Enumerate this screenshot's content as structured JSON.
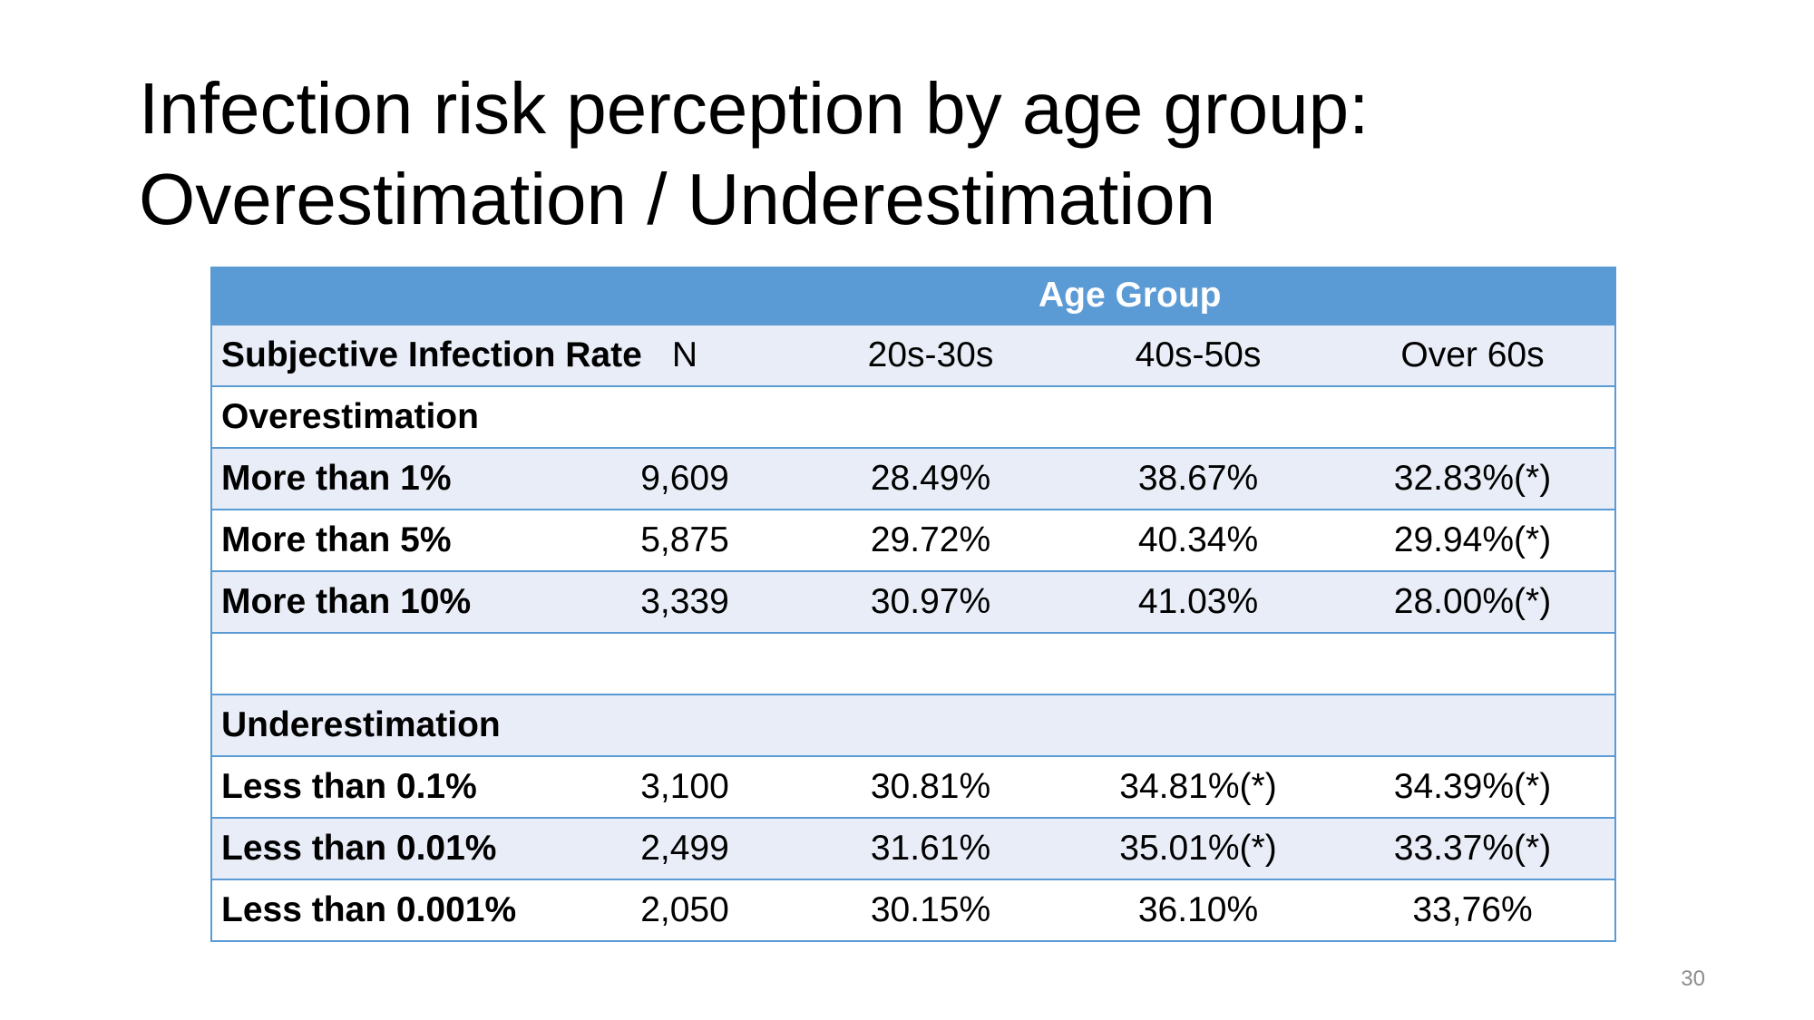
{
  "title": {
    "line1": "Infection risk perception by age group:",
    "line2": "Overestimation / Underestimation"
  },
  "table": {
    "group_header": "Age Group",
    "columns": [
      "Subjective Infection Rate",
      "N",
      "20s-30s",
      "40s-50s",
      "Over 60s"
    ],
    "sections": [
      {
        "label": "Overestimation",
        "rows": [
          {
            "label": "More than 1%",
            "n": "9,609",
            "c20s30s": "28.49%",
            "c40s50s": "38.67%",
            "over60s": "32.83%(*)"
          },
          {
            "label": "More than 5%",
            "n": "5,875",
            "c20s30s": "29.72%",
            "c40s50s": "40.34%",
            "over60s": "29.94%(*)"
          },
          {
            "label": "More than 10%",
            "n": "3,339",
            "c20s30s": "30.97%",
            "c40s50s": "41.03%",
            "over60s": "28.00%(*)"
          }
        ]
      },
      {
        "label": "Underestimation",
        "rows": [
          {
            "label": "Less than 0.1%",
            "n": "3,100",
            "c20s30s": "30.81%",
            "c40s50s": "34.81%(*)",
            "over60s": "34.39%(*)"
          },
          {
            "label": "Less than 0.01%",
            "n": "2,499",
            "c20s30s": "31.61%",
            "c40s50s": "35.01%(*)",
            "over60s": "33.37%(*)"
          },
          {
            "label": "Less than 0.001%",
            "n": "2,050",
            "c20s30s": "30.15%",
            "c40s50s": "36.10%",
            "over60s": "33,76%"
          }
        ]
      }
    ]
  },
  "colors": {
    "header_band": "#5b9bd5",
    "row_band": "#e9edf7",
    "border": "#5b9bd5"
  },
  "page_number": "30"
}
